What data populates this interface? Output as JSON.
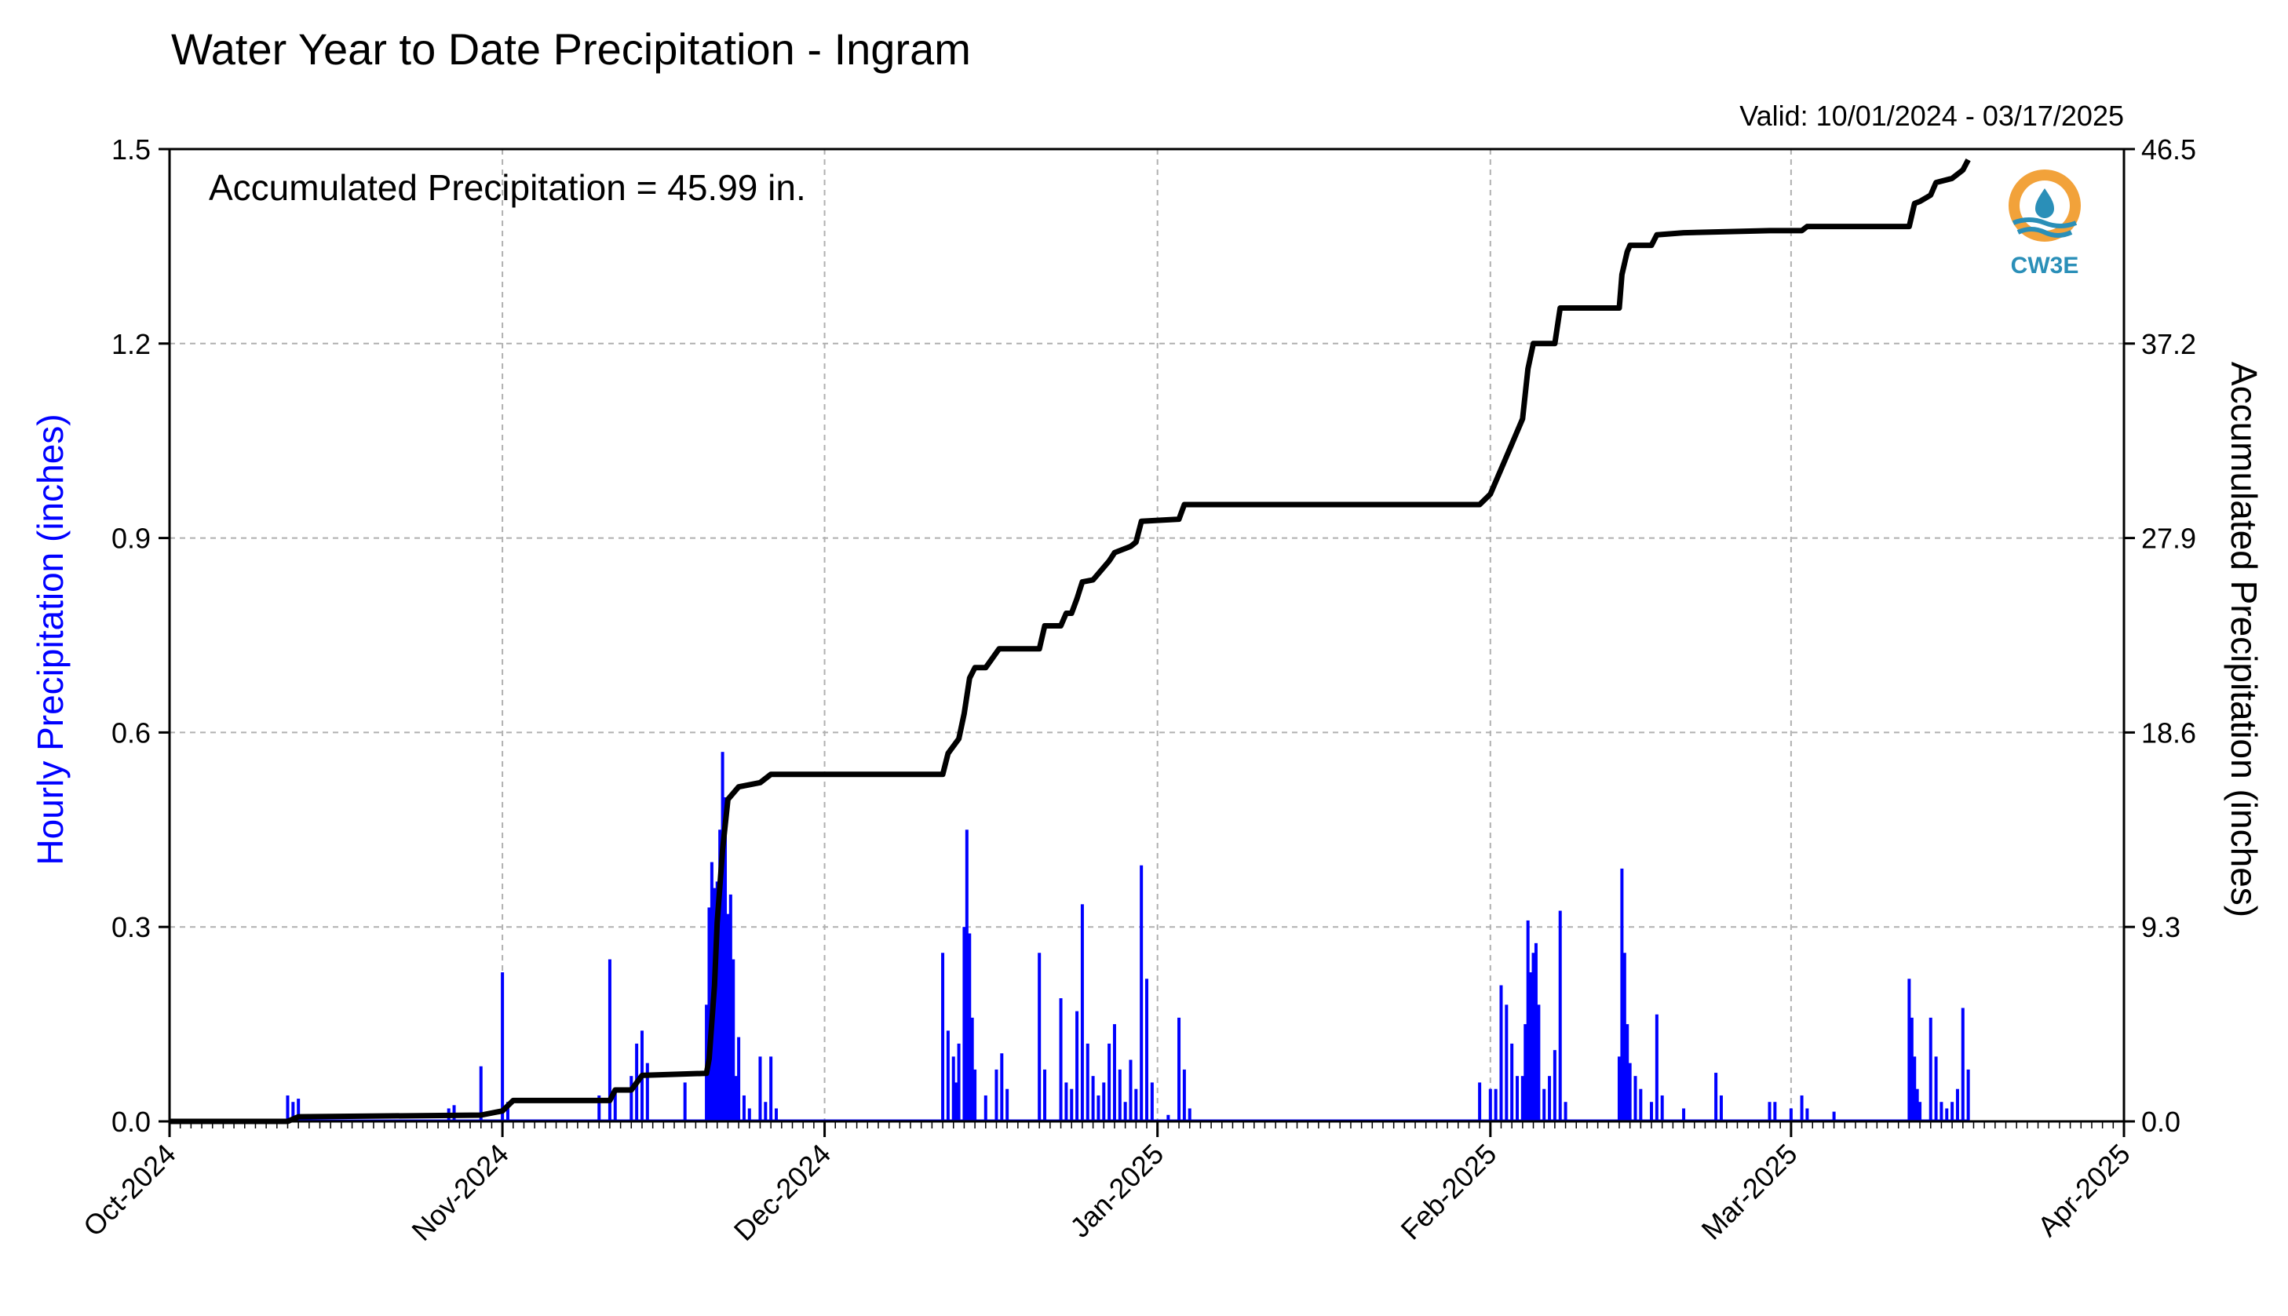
{
  "chart_data": {
    "type": "bar",
    "title": "Water Year to Date Precipitation - Ingram",
    "valid_label": "Valid: 10/01/2024 - 03/17/2025",
    "annotation": "Accumulated Precipitation = 45.99 in.",
    "ylabel": "Hourly Precipitation (inches)",
    "y2label": "Accumulated Precipitation (inches)",
    "logo_text": "CW3E",
    "x_range": [
      "2024-10-01",
      "2025-04-01"
    ],
    "ylim": [
      0,
      1.5
    ],
    "y2lim": [
      0,
      46.5
    ],
    "grid": true,
    "x_ticks": [
      {
        "date": "2024-10-01",
        "label": "Oct-2024"
      },
      {
        "date": "2024-11-01",
        "label": "Nov-2024"
      },
      {
        "date": "2024-12-01",
        "label": "Dec-2024"
      },
      {
        "date": "2025-01-01",
        "label": "Jan-2025"
      },
      {
        "date": "2025-02-01",
        "label": "Feb-2025"
      },
      {
        "date": "2025-03-01",
        "label": "Mar-2025"
      },
      {
        "date": "2025-04-01",
        "label": "Apr-2025"
      }
    ],
    "y_ticks": [
      "0.0",
      "0.3",
      "0.6",
      "0.9",
      "1.2",
      "1.5"
    ],
    "y2_ticks": [
      "0.0",
      "9.3",
      "18.6",
      "27.9",
      "37.2",
      "46.5"
    ],
    "colors": {
      "hourly": "#0000ff",
      "accumulated": "#000000",
      "grid": "#b0b0b0"
    },
    "series": [
      {
        "name": "Hourly Precipitation",
        "type": "bar",
        "points": [
          [
            "2024-10-12",
            0.04
          ],
          [
            "2024-10-12T12",
            0.03
          ],
          [
            "2024-10-13",
            0.035
          ],
          [
            "2024-10-27",
            0.02
          ],
          [
            "2024-10-27T12",
            0.025
          ],
          [
            "2024-10-30",
            0.085
          ],
          [
            "2024-11-01",
            0.23
          ],
          [
            "2024-11-01T12",
            0.03
          ],
          [
            "2024-11-10",
            0.04
          ],
          [
            "2024-11-11",
            0.25
          ],
          [
            "2024-11-11T12",
            0.05
          ],
          [
            "2024-11-13",
            0.07
          ],
          [
            "2024-11-13T12",
            0.12
          ],
          [
            "2024-11-14",
            0.14
          ],
          [
            "2024-11-14T12",
            0.09
          ],
          [
            "2024-11-18",
            0.06
          ],
          [
            "2024-11-20",
            0.18
          ],
          [
            "2024-11-20T06",
            0.33
          ],
          [
            "2024-11-20T12",
            0.4
          ],
          [
            "2024-11-20T18",
            0.36
          ],
          [
            "2024-11-21",
            0.37
          ],
          [
            "2024-11-21T06",
            0.45
          ],
          [
            "2024-11-21T12",
            0.57
          ],
          [
            "2024-11-21T18",
            0.5
          ],
          [
            "2024-11-22",
            0.32
          ],
          [
            "2024-11-22T06",
            0.35
          ],
          [
            "2024-11-22T12",
            0.25
          ],
          [
            "2024-11-22T18",
            0.07
          ],
          [
            "2024-11-23",
            0.13
          ],
          [
            "2024-11-23T12",
            0.04
          ],
          [
            "2024-11-24",
            0.02
          ],
          [
            "2024-11-25",
            0.1
          ],
          [
            "2024-11-25T12",
            0.03
          ],
          [
            "2024-11-26",
            0.1
          ],
          [
            "2024-11-26T12",
            0.02
          ],
          [
            "2024-12-12",
            0.26
          ],
          [
            "2024-12-12T12",
            0.14
          ],
          [
            "2024-12-13",
            0.1
          ],
          [
            "2024-12-13T06",
            0.06
          ],
          [
            "2024-12-13T12",
            0.12
          ],
          [
            "2024-12-14",
            0.3
          ],
          [
            "2024-12-14T06",
            0.45
          ],
          [
            "2024-12-14T12",
            0.29
          ],
          [
            "2024-12-14T18",
            0.16
          ],
          [
            "2024-12-15",
            0.08
          ],
          [
            "2024-12-16",
            0.04
          ],
          [
            "2024-12-17",
            0.08
          ],
          [
            "2024-12-17T12",
            0.105
          ],
          [
            "2024-12-18",
            0.05
          ],
          [
            "2024-12-21",
            0.26
          ],
          [
            "2024-12-21T12",
            0.08
          ],
          [
            "2024-12-23",
            0.19
          ],
          [
            "2024-12-23T12",
            0.06
          ],
          [
            "2024-12-24",
            0.05
          ],
          [
            "2024-12-24T12",
            0.17
          ],
          [
            "2024-12-25",
            0.335
          ],
          [
            "2024-12-25T12",
            0.12
          ],
          [
            "2024-12-26",
            0.07
          ],
          [
            "2024-12-26T12",
            0.04
          ],
          [
            "2024-12-27",
            0.06
          ],
          [
            "2024-12-27T12",
            0.12
          ],
          [
            "2024-12-28",
            0.15
          ],
          [
            "2024-12-28T12",
            0.08
          ],
          [
            "2024-12-29",
            0.03
          ],
          [
            "2024-12-29T12",
            0.095
          ],
          [
            "2024-12-30",
            0.05
          ],
          [
            "2024-12-30T12",
            0.395
          ],
          [
            "2024-12-31",
            0.22
          ],
          [
            "2024-12-31T12",
            0.06
          ],
          [
            "2025-01-02",
            0.01
          ],
          [
            "2025-01-03",
            0.16
          ],
          [
            "2025-01-03T12",
            0.08
          ],
          [
            "2025-01-04",
            0.02
          ],
          [
            "2025-01-31",
            0.06
          ],
          [
            "2025-02-01",
            0.05
          ],
          [
            "2025-02-01T12",
            0.05
          ],
          [
            "2025-02-02",
            0.21
          ],
          [
            "2025-02-02T12",
            0.18
          ],
          [
            "2025-02-03",
            0.12
          ],
          [
            "2025-02-03T12",
            0.07
          ],
          [
            "2025-02-04",
            0.07
          ],
          [
            "2025-02-04T06",
            0.15
          ],
          [
            "2025-02-04T12",
            0.31
          ],
          [
            "2025-02-04T18",
            0.23
          ],
          [
            "2025-02-05",
            0.26
          ],
          [
            "2025-02-05T06",
            0.275
          ],
          [
            "2025-02-05T12",
            0.18
          ],
          [
            "2025-02-06",
            0.05
          ],
          [
            "2025-02-06T12",
            0.07
          ],
          [
            "2025-02-07",
            0.11
          ],
          [
            "2025-02-07T12",
            0.325
          ],
          [
            "2025-02-08",
            0.03
          ],
          [
            "2025-02-13",
            0.1
          ],
          [
            "2025-02-13T06",
            0.39
          ],
          [
            "2025-02-13T12",
            0.26
          ],
          [
            "2025-02-13T18",
            0.15
          ],
          [
            "2025-02-14",
            0.09
          ],
          [
            "2025-02-14T12",
            0.07
          ],
          [
            "2025-02-15",
            0.05
          ],
          [
            "2025-02-16",
            0.03
          ],
          [
            "2025-02-16T12",
            0.165
          ],
          [
            "2025-02-17",
            0.04
          ],
          [
            "2025-02-19",
            0.02
          ],
          [
            "2025-02-22",
            0.075
          ],
          [
            "2025-02-22T12",
            0.04
          ],
          [
            "2025-02-27",
            0.03
          ],
          [
            "2025-02-27T12",
            0.03
          ],
          [
            "2025-03-01",
            0.02
          ],
          [
            "2025-03-02",
            0.04
          ],
          [
            "2025-03-02T12",
            0.02
          ],
          [
            "2025-03-05",
            0.015
          ],
          [
            "2025-03-12",
            0.22
          ],
          [
            "2025-03-12T06",
            0.16
          ],
          [
            "2025-03-12T12",
            0.1
          ],
          [
            "2025-03-12T18",
            0.05
          ],
          [
            "2025-03-13",
            0.03
          ],
          [
            "2025-03-14",
            0.16
          ],
          [
            "2025-03-14T12",
            0.1
          ],
          [
            "2025-03-15",
            0.03
          ],
          [
            "2025-03-15T12",
            0.02
          ],
          [
            "2025-03-16",
            0.03
          ],
          [
            "2025-03-16T12",
            0.05
          ],
          [
            "2025-03-17",
            0.175
          ],
          [
            "2025-03-17T12",
            0.08
          ]
        ]
      },
      {
        "name": "Accumulated Precipitation",
        "type": "line",
        "axis": "right",
        "points": [
          [
            "2024-10-01",
            0.0
          ],
          [
            "2024-10-12",
            0.0
          ],
          [
            "2024-10-13",
            0.22
          ],
          [
            "2024-10-30",
            0.3
          ],
          [
            "2024-11-01",
            0.5
          ],
          [
            "2024-11-02",
            1.0
          ],
          [
            "2024-11-11",
            1.0
          ],
          [
            "2024-11-11T12",
            1.5
          ],
          [
            "2024-11-13",
            1.5
          ],
          [
            "2024-11-14",
            2.2
          ],
          [
            "2024-11-20",
            2.3
          ],
          [
            "2024-11-20T06",
            3.0
          ],
          [
            "2024-11-20T18",
            6.5
          ],
          [
            "2024-11-21",
            9.5
          ],
          [
            "2024-11-21T12",
            13.0
          ],
          [
            "2024-11-22",
            15.4
          ],
          [
            "2024-11-23",
            16.0
          ],
          [
            "2024-11-25",
            16.2
          ],
          [
            "2024-11-26",
            16.6
          ],
          [
            "2024-12-12",
            16.6
          ],
          [
            "2024-12-12T12",
            17.6
          ],
          [
            "2024-12-13T12",
            18.3
          ],
          [
            "2024-12-14",
            19.5
          ],
          [
            "2024-12-14T12",
            21.2
          ],
          [
            "2024-12-15",
            21.7
          ],
          [
            "2024-12-16",
            21.7
          ],
          [
            "2024-12-17T06",
            22.6
          ],
          [
            "2024-12-21",
            22.6
          ],
          [
            "2024-12-21T12",
            23.7
          ],
          [
            "2024-12-23",
            23.7
          ],
          [
            "2024-12-23T12",
            24.3
          ],
          [
            "2024-12-24",
            24.3
          ],
          [
            "2024-12-24T12",
            25.0
          ],
          [
            "2024-12-25",
            25.8
          ],
          [
            "2024-12-26",
            25.9
          ],
          [
            "2024-12-27T12",
            26.8
          ],
          [
            "2024-12-28",
            27.2
          ],
          [
            "2024-12-29T12",
            27.5
          ],
          [
            "2024-12-30",
            27.7
          ],
          [
            "2024-12-30T12",
            28.7
          ],
          [
            "2025-01-03",
            28.8
          ],
          [
            "2025-01-03T12",
            29.5
          ],
          [
            "2025-01-31",
            29.5
          ],
          [
            "2025-02-01",
            30.0
          ],
          [
            "2025-02-02",
            31.2
          ],
          [
            "2025-02-03",
            32.4
          ],
          [
            "2025-02-04",
            33.6
          ],
          [
            "2025-02-04T12",
            36.0
          ],
          [
            "2025-02-05",
            37.2
          ],
          [
            "2025-02-07",
            37.2
          ],
          [
            "2025-02-07T12",
            38.9
          ],
          [
            "2025-02-13",
            38.9
          ],
          [
            "2025-02-13T06",
            40.5
          ],
          [
            "2025-02-13T18",
            41.6
          ],
          [
            "2025-02-14",
            41.9
          ],
          [
            "2025-02-16",
            41.9
          ],
          [
            "2025-02-16T12",
            42.4
          ],
          [
            "2025-02-19",
            42.5
          ],
          [
            "2025-02-27",
            42.6
          ],
          [
            "2025-03-02",
            42.6
          ],
          [
            "2025-03-02T12",
            42.8
          ],
          [
            "2025-03-12",
            42.8
          ],
          [
            "2025-03-12T12",
            43.9
          ],
          [
            "2025-03-13",
            44.0
          ],
          [
            "2025-03-14",
            44.3
          ],
          [
            "2025-03-14T12",
            44.9
          ],
          [
            "2025-03-16",
            45.1
          ],
          [
            "2025-03-17",
            45.5
          ],
          [
            "2025-03-17T12",
            45.99
          ]
        ]
      }
    ]
  }
}
